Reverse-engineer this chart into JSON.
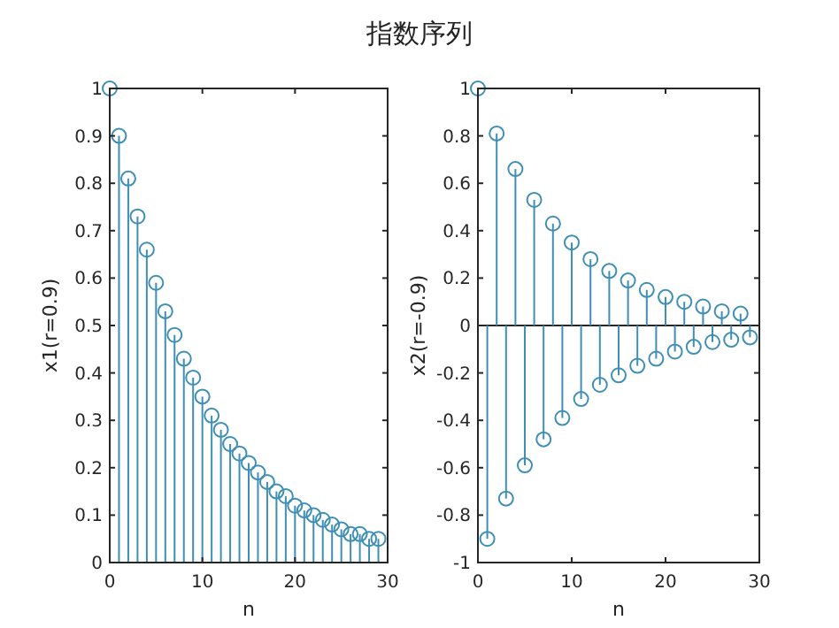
{
  "chart_data": [
    {
      "type": "lollipop",
      "title": "指数序列",
      "xlabel": "n",
      "ylabel": "x1(r=0.9)",
      "color": "#3f8fb5",
      "marker": "circle",
      "grid": false,
      "x": [
        0,
        1,
        2,
        3,
        4,
        5,
        6,
        7,
        8,
        9,
        10,
        11,
        12,
        13,
        14,
        15,
        16,
        17,
        18,
        19,
        20,
        21,
        22,
        23,
        24,
        25,
        26,
        27,
        28,
        29
      ],
      "values": [
        1,
        0.9,
        0.81,
        0.73,
        0.66,
        0.59,
        0.53,
        0.48,
        0.43,
        0.39,
        0.35,
        0.31,
        0.28,
        0.25,
        0.23,
        0.21,
        0.19,
        0.17,
        0.15,
        0.14,
        0.12,
        0.11,
        0.1,
        0.09,
        0.08,
        0.07,
        0.06,
        0.06,
        0.05,
        0.05
      ],
      "xlim": [
        0,
        30
      ],
      "xticks": [
        0,
        10,
        20,
        30
      ],
      "ylim": [
        0,
        1
      ],
      "yticks": [
        0,
        0.1,
        0.2,
        0.3,
        0.4,
        0.5,
        0.6,
        0.7,
        0.8,
        0.9,
        1
      ]
    },
    {
      "type": "lollipop",
      "xlabel": "n",
      "ylabel": "x2(r=-0.9)",
      "color": "#3f8fb5",
      "marker": "circle",
      "grid": false,
      "x": [
        0,
        1,
        2,
        3,
        4,
        5,
        6,
        7,
        8,
        9,
        10,
        11,
        12,
        13,
        14,
        15,
        16,
        17,
        18,
        19,
        20,
        21,
        22,
        23,
        24,
        25,
        26,
        27,
        28,
        29
      ],
      "values": [
        1,
        -0.9,
        0.81,
        -0.73,
        0.66,
        -0.59,
        0.53,
        -0.48,
        0.43,
        -0.39,
        0.35,
        -0.31,
        0.28,
        -0.25,
        0.23,
        -0.21,
        0.19,
        -0.17,
        0.15,
        -0.14,
        0.12,
        -0.11,
        0.1,
        -0.09,
        0.08,
        -0.07,
        0.06,
        -0.06,
        0.05,
        -0.05
      ],
      "ref_lines": [
        {
          "axis": "y",
          "value": 0,
          "color": "#262626"
        }
      ],
      "xlim": [
        0,
        30
      ],
      "xticks": [
        0,
        10,
        20,
        30
      ],
      "ylim": [
        -1,
        1
      ],
      "yticks": [
        -1,
        -0.8,
        -0.6,
        -0.4,
        -0.2,
        0,
        0.2,
        0.4,
        0.6,
        0.8,
        1
      ]
    }
  ]
}
